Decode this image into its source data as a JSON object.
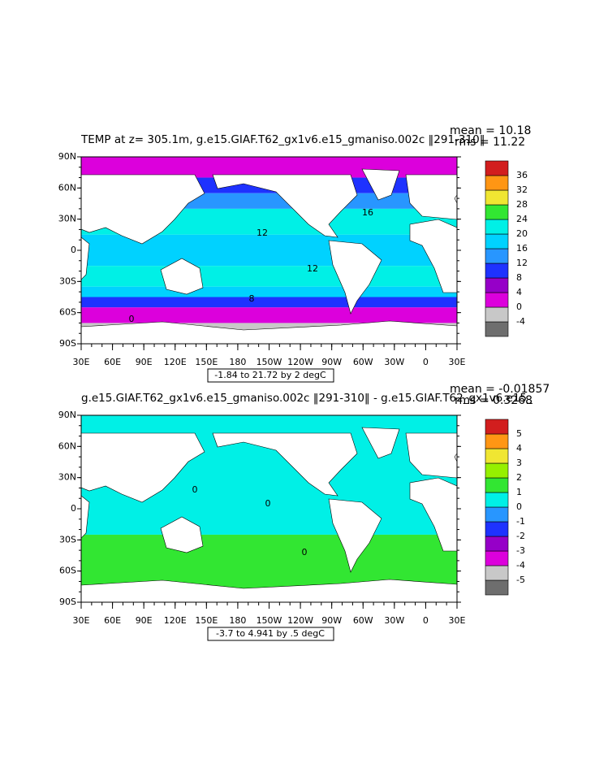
{
  "lat_labels": [
    "90N",
    "60N",
    "30N",
    "0",
    "30S",
    "60S",
    "90S"
  ],
  "lon_labels": [
    "30E",
    "60E",
    "90E",
    "120E",
    "150E",
    "180",
    "150W",
    "120W",
    "90W",
    "60W",
    "30W",
    "0",
    "30E"
  ],
  "panels": [
    {
      "title": "TEMP at z= 305.1m, g.e15.GIAF.T62_gx1v6.e15_gmaniso.002c ‖291-310‖",
      "stats": [
        "mean = 10.18",
        "rms = 11.22"
      ],
      "footer": "-1.84 to 21.72 by 2 degC",
      "levels": [
        -4,
        0,
        4,
        8,
        12,
        16,
        20,
        24,
        28,
        32,
        36
      ],
      "colors": [
        "#6e6e6e",
        "#c8c8c8",
        "#dc00dc",
        "#9600c8",
        "#1e32ff",
        "#2896ff",
        "#00d2ff",
        "#00f0e6",
        "#32e632",
        "#f0e632",
        "#ff9614",
        "#d21e1e"
      ],
      "contour_labels": [
        16,
        12,
        12,
        8,
        0
      ]
    },
    {
      "title": "g.e15.GIAF.T62_gx1v6.e15_gmaniso.002c ‖291-310‖ - g.e15.GIAF.T62_gx1v6.e15_",
      "stats": [
        "mean = -0.01857",
        "rms = 0.3268"
      ],
      "footer": "-3.7 to 4.941 by .5 degC",
      "levels": [
        -5,
        -4,
        -3,
        -2,
        -1,
        0,
        1,
        2,
        3,
        4,
        5
      ],
      "colors": [
        "#6e6e6e",
        "#c8c8c8",
        "#dc00dc",
        "#9600c8",
        "#1e32ff",
        "#2896ff",
        "#00f0e6",
        "#32e632",
        "#96f000",
        "#f0e632",
        "#ff9614",
        "#d21e1e"
      ],
      "contour_labels": [
        0,
        0,
        0
      ]
    }
  ]
}
